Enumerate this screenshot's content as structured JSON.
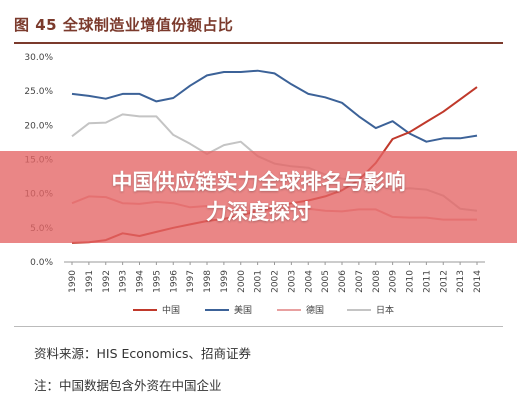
{
  "figure": {
    "title": "图 45 全球制造业增值份额占比",
    "source": "资料来源：HIS Economics、招商证券",
    "note": "注：中国数据包含外资在中国企业"
  },
  "overlay": {
    "line1": "中国供应链实力全球排名与影响",
    "line2": "力深度探讨"
  },
  "chart_data": {
    "type": "line",
    "title": "全球制造业增值份额占比",
    "x": [
      "1990",
      "1991",
      "1992",
      "1993",
      "1994",
      "1995",
      "1996",
      "1997",
      "1998",
      "1999",
      "2000",
      "2001",
      "2002",
      "2003",
      "2004",
      "2005",
      "2006",
      "2007",
      "2008",
      "2009",
      "2010",
      "2011",
      "2012",
      "2013",
      "2014"
    ],
    "y_ticks": [
      "0.0%",
      "5.0%",
      "10.0%",
      "15.0%",
      "20.0%",
      "25.0%",
      "30.0%"
    ],
    "ylim": [
      0,
      30
    ],
    "grid": false,
    "legend_position": "bottom",
    "series": [
      {
        "name": "中国",
        "color": "#c0392b",
        "values": [
          2.8,
          2.9,
          3.2,
          4.2,
          3.8,
          4.4,
          5.0,
          5.5,
          6.0,
          6.3,
          6.8,
          7.5,
          8.0,
          8.6,
          9.0,
          9.6,
          10.5,
          12.0,
          14.5,
          18.0,
          19.0,
          20.5,
          22.0,
          23.8,
          25.6
        ]
      },
      {
        "name": "美国",
        "color": "#3c6298",
        "values": [
          24.6,
          24.3,
          23.9,
          24.6,
          24.6,
          23.5,
          24.0,
          25.8,
          27.3,
          27.8,
          27.8,
          28.0,
          27.6,
          26.0,
          24.6,
          24.1,
          23.3,
          21.3,
          19.6,
          20.6,
          18.8,
          17.6,
          18.1,
          18.1,
          18.5
        ]
      },
      {
        "name": "德国",
        "color": "#e8a0a0",
        "values": [
          8.6,
          9.6,
          9.5,
          8.6,
          8.5,
          8.8,
          8.6,
          8.0,
          8.2,
          8.0,
          7.5,
          7.4,
          7.6,
          8.0,
          7.8,
          7.5,
          7.4,
          7.7,
          7.7,
          6.6,
          6.5,
          6.5,
          6.2,
          6.2,
          6.2
        ]
      },
      {
        "name": "日本",
        "color": "#c4c4c4",
        "values": [
          18.4,
          20.3,
          20.4,
          21.6,
          21.3,
          21.3,
          18.6,
          17.3,
          15.8,
          17.1,
          17.6,
          15.5,
          14.4,
          14.0,
          13.8,
          12.8,
          12.2,
          11.9,
          11.3,
          10.6,
          10.8,
          10.6,
          9.7,
          7.8,
          7.5
        ]
      }
    ]
  }
}
